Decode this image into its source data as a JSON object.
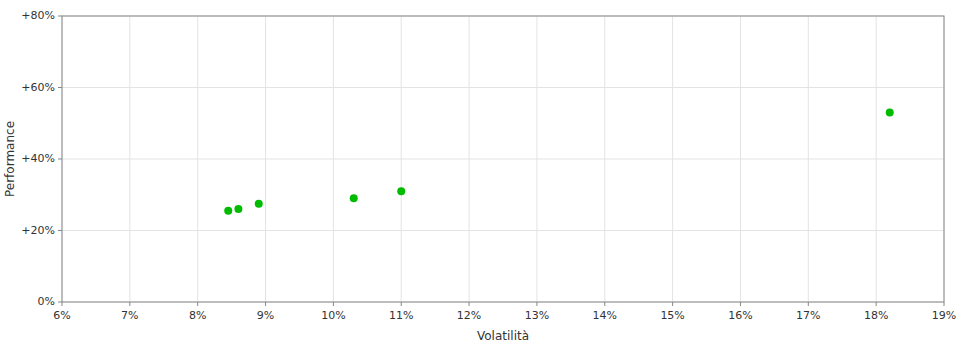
{
  "chart_data": {
    "type": "scatter",
    "xlabel": "Volatilità",
    "ylabel": "Performance",
    "x": [
      8.45,
      8.6,
      8.9,
      10.3,
      11.0,
      18.2
    ],
    "values": [
      25.5,
      26.0,
      27.5,
      29.0,
      31.0,
      53.0
    ],
    "color": "#00bb00",
    "xlim": [
      6,
      19
    ],
    "ylim": [
      0,
      80
    ],
    "xticks": [
      {
        "value": 6,
        "label": "6%"
      },
      {
        "value": 7,
        "label": "7%"
      },
      {
        "value": 8,
        "label": "8%"
      },
      {
        "value": 9,
        "label": "9%"
      },
      {
        "value": 10,
        "label": "10%"
      },
      {
        "value": 11,
        "label": "11%"
      },
      {
        "value": 12,
        "label": "12%"
      },
      {
        "value": 13,
        "label": "13%"
      },
      {
        "value": 14,
        "label": "14%"
      },
      {
        "value": 15,
        "label": "15%"
      },
      {
        "value": 16,
        "label": "16%"
      },
      {
        "value": 17,
        "label": "17%"
      },
      {
        "value": 18,
        "label": "18%"
      },
      {
        "value": 19,
        "label": "19%"
      }
    ],
    "yticks": [
      {
        "value": 0,
        "label": "0%"
      },
      {
        "value": 20,
        "label": "+20%"
      },
      {
        "value": 40,
        "label": "+40%"
      },
      {
        "value": 60,
        "label": "+60%"
      },
      {
        "value": 80,
        "label": "+80%"
      }
    ],
    "grid": true
  }
}
